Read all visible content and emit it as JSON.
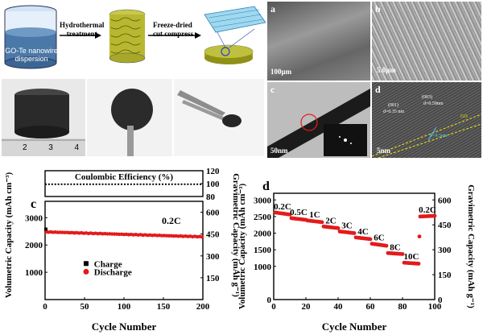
{
  "schematic": {
    "beaker_label_line1": "GO-Te nanowire",
    "beaker_label_line2": "dispersion",
    "step1_line1": "Hydrothermal",
    "step1_line2": "treatment",
    "step2_line1": "Freeze-dried",
    "step2_line2": "cut compress"
  },
  "photos": {
    "ruler_ticks": [
      "2",
      "3",
      "4"
    ]
  },
  "micrographs": {
    "a": {
      "label": "a",
      "scale": "100μm"
    },
    "b": {
      "label": "b",
      "scale": "5.0μm"
    },
    "c": {
      "label": "c",
      "scale": "50nm"
    },
    "d": {
      "label": "d",
      "scale": "5nm",
      "ann1": "(001)",
      "ann1b": "d=0.35 nm",
      "ann2": "(003)",
      "ann2b": "d=0.59nm",
      "ann3": "d=4.3nm",
      "ann4": "GO"
    }
  },
  "colors": {
    "charge": "#000000",
    "discharge": "#e31a1c",
    "efficiency": "#000000"
  },
  "chart_data": [
    {
      "panel": "c",
      "type": "scatter",
      "subpanel_title": "Coulombic Efficiency (%)",
      "rate_label": "0.2C",
      "xlabel": "Cycle Number",
      "ylabel_left": "Volumetric Capacity (mAh cm⁻³)",
      "ylabel_right": "Gravimetric Capacity (mAh g⁻¹)",
      "xlim": [
        0,
        200
      ],
      "xticks": [
        0,
        50,
        100,
        150,
        200
      ],
      "ylim_left": [
        0,
        3600
      ],
      "yticks_left": [
        1000,
        2000,
        3000
      ],
      "yticks_right": [
        150,
        300,
        450,
        600
      ],
      "eff_ylim": [
        80,
        120
      ],
      "eff_yticks": [
        80,
        100,
        120
      ],
      "efficiency_value": 99,
      "legend": [
        "Charge",
        "Discharge"
      ],
      "charge_first": 2580,
      "discharge_start": 2480,
      "discharge_end": 2300
    },
    {
      "panel": "d",
      "type": "scatter",
      "xlabel": "Cycle Number",
      "ylabel_left": "Volumetric Capacity (mAh cm⁻³)",
      "ylabel_right": "Gravimetric Capacity (mAh g⁻¹)",
      "xlim": [
        0,
        100
      ],
      "xticks": [
        0,
        20,
        40,
        60,
        80,
        100
      ],
      "ylim_left": [
        0,
        3200
      ],
      "yticks_left": [
        0,
        1000,
        1500,
        2000,
        2500,
        3000
      ],
      "yticks_right": [
        0,
        150,
        300,
        450,
        600
      ],
      "segments": [
        {
          "rate": "0.2C",
          "start": 1,
          "end": 10,
          "v1": 2620,
          "v2": 2560
        },
        {
          "rate": "0.5C",
          "start": 11,
          "end": 20,
          "v1": 2450,
          "v2": 2400
        },
        {
          "rate": "1C",
          "start": 21,
          "end": 30,
          "v1": 2380,
          "v2": 2330
        },
        {
          "rate": "2C",
          "start": 31,
          "end": 40,
          "v1": 2200,
          "v2": 2150
        },
        {
          "rate": "3C",
          "start": 41,
          "end": 50,
          "v1": 2050,
          "v2": 2000
        },
        {
          "rate": "4C",
          "start": 51,
          "end": 60,
          "v1": 1870,
          "v2": 1820
        },
        {
          "rate": "6C",
          "start": 61,
          "end": 70,
          "v1": 1680,
          "v2": 1620
        },
        {
          "rate": "8C",
          "start": 71,
          "end": 80,
          "v1": 1400,
          "v2": 1370
        },
        {
          "rate": "10C",
          "start": 81,
          "end": 90,
          "v1": 1110,
          "v2": 1080
        },
        {
          "rate": "0.2C",
          "start": 91,
          "end": 100,
          "v1": 2500,
          "v2": 2520
        }
      ]
    }
  ]
}
